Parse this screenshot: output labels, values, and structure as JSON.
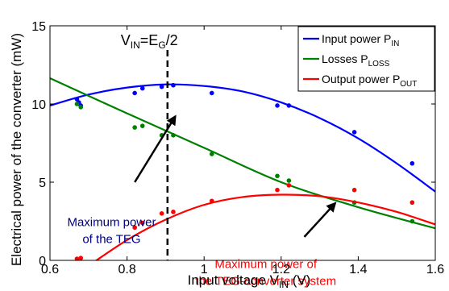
{
  "chart_data": {
    "type": "scatter",
    "xlabel": "Input voltage V",
    "xlabel_sub": "IN",
    "xlabel_unit": " (V)",
    "ylabel": "Electrical power of the converter  (mW)",
    "xlim": [
      0.6,
      1.6
    ],
    "ylim": [
      0,
      15
    ],
    "xticks": [
      "0.6",
      "0.8",
      "1",
      "1.2",
      "1.4",
      "1.6"
    ],
    "yticks": [
      "0",
      "5",
      "10",
      "15"
    ],
    "grid": false,
    "legend_position": "top-right",
    "series": [
      {
        "name": "Input power P",
        "name_sub": "IN",
        "color": "#0000ff",
        "points": [
          [
            0.67,
            10.3
          ],
          [
            0.675,
            10.1
          ],
          [
            0.68,
            9.9
          ],
          [
            0.82,
            10.7
          ],
          [
            0.84,
            11.0
          ],
          [
            0.89,
            11.1
          ],
          [
            0.92,
            11.2
          ],
          [
            1.02,
            10.7
          ],
          [
            1.19,
            9.9
          ],
          [
            1.22,
            9.9
          ],
          [
            1.39,
            8.2
          ],
          [
            1.54,
            6.2
          ]
        ],
        "fit": [
          [
            0.6,
            9.9
          ],
          [
            0.7,
            10.6
          ],
          [
            0.8,
            11.05
          ],
          [
            0.9,
            11.25
          ],
          [
            1.0,
            11.15
          ],
          [
            1.1,
            10.8
          ],
          [
            1.2,
            10.1
          ],
          [
            1.3,
            9.1
          ],
          [
            1.4,
            7.8
          ],
          [
            1.5,
            6.2
          ],
          [
            1.6,
            4.4
          ]
        ]
      },
      {
        "name": "Losses P",
        "name_sub": "LOSS",
        "color": "#008000",
        "points": [
          [
            0.67,
            10.0
          ],
          [
            0.68,
            9.8
          ],
          [
            0.82,
            8.5
          ],
          [
            0.84,
            8.6
          ],
          [
            0.89,
            8.0
          ],
          [
            0.92,
            8.0
          ],
          [
            1.02,
            6.8
          ],
          [
            1.19,
            5.4
          ],
          [
            1.22,
            5.1
          ],
          [
            1.39,
            3.7
          ],
          [
            1.54,
            2.5
          ]
        ],
        "fit": [
          [
            0.6,
            11.65
          ],
          [
            0.8,
            9.4
          ],
          [
            1.0,
            7.2
          ],
          [
            1.2,
            5.0
          ],
          [
            1.4,
            3.4
          ],
          [
            1.6,
            2.05
          ]
        ]
      },
      {
        "name": "Output power P",
        "name_sub": "OUT",
        "color": "#ff0000",
        "points": [
          [
            0.67,
            0.1
          ],
          [
            0.68,
            0.15
          ],
          [
            0.82,
            2.1
          ],
          [
            0.84,
            2.4
          ],
          [
            0.89,
            3.0
          ],
          [
            0.92,
            3.1
          ],
          [
            1.02,
            3.8
          ],
          [
            1.19,
            4.5
          ],
          [
            1.22,
            4.8
          ],
          [
            1.39,
            4.5
          ],
          [
            1.54,
            3.7
          ]
        ],
        "fit": [
          [
            0.7,
            -0.35
          ],
          [
            0.8,
            1.3
          ],
          [
            0.9,
            2.6
          ],
          [
            1.0,
            3.55
          ],
          [
            1.1,
            4.05
          ],
          [
            1.2,
            4.2
          ],
          [
            1.3,
            4.1
          ],
          [
            1.4,
            3.7
          ],
          [
            1.5,
            3.1
          ],
          [
            1.6,
            2.3
          ]
        ]
      }
    ],
    "vline": {
      "x": 0.905,
      "label_main": "V",
      "label_sub1": "IN",
      "label_eq": "=E",
      "label_sub2": "G",
      "label_tail": "/2"
    },
    "annotations": [
      {
        "lines": [
          "Maximum power",
          "of the TEG"
        ],
        "color": "#000080",
        "text_pos": [
          0.76,
          2.2
        ],
        "arrow_from": [
          0.82,
          5.0
        ],
        "arrow_to": [
          0.925,
          9.2
        ]
      },
      {
        "lines": [
          "Maximum power of",
          "the TEG-converter system"
        ],
        "color": "#ff0000",
        "text_pos": [
          1.16,
          -0.5
        ],
        "arrow_from": [
          1.26,
          1.5
        ],
        "arrow_to": [
          1.34,
          3.65
        ]
      }
    ]
  }
}
